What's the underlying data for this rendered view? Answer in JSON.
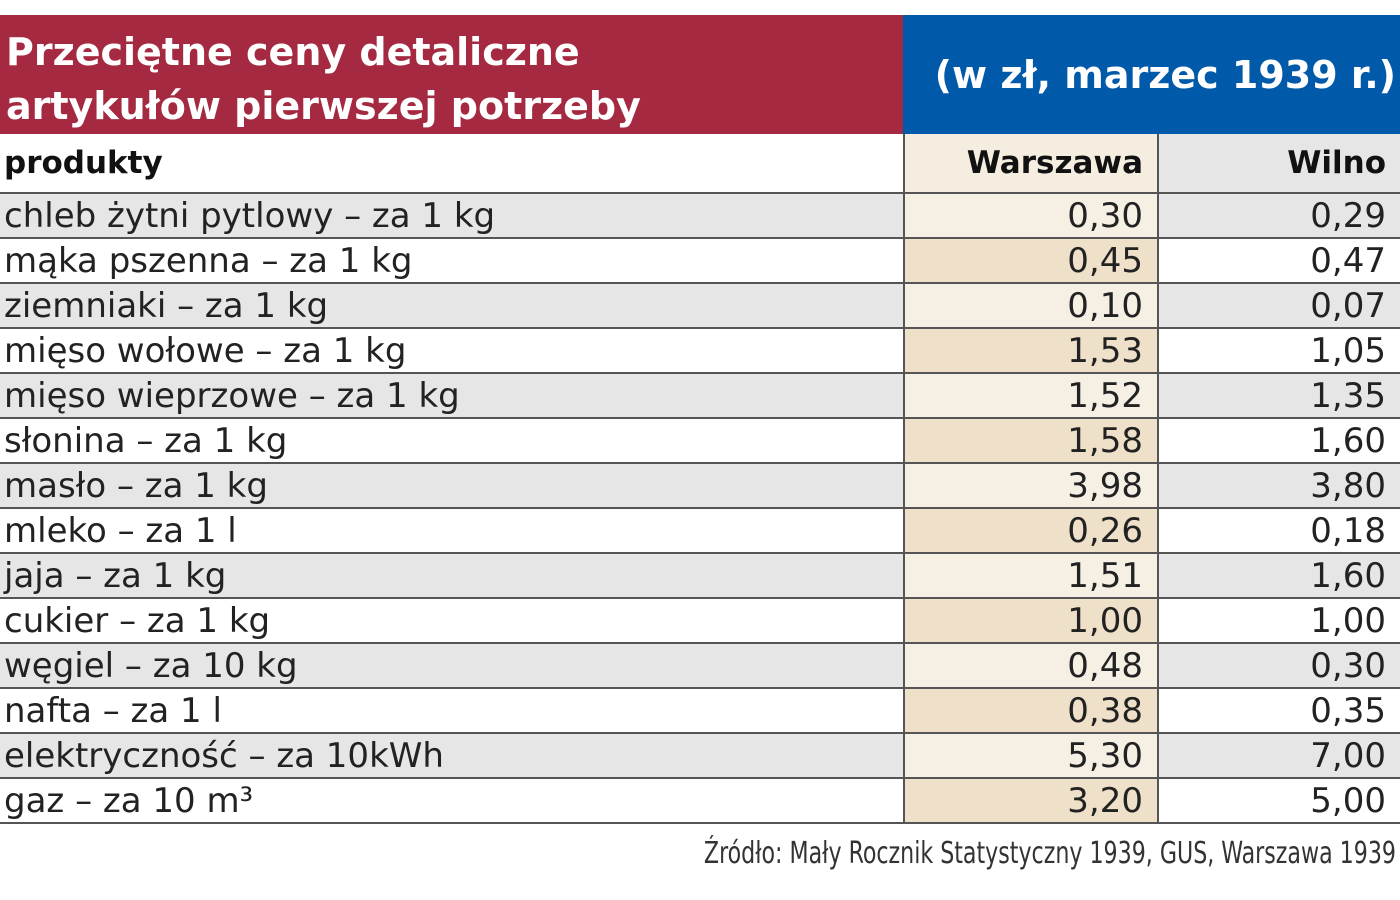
{
  "header": {
    "title_lines": [
      "Przeciętne ceny detaliczne",
      "artykułów pierwszej potrzeby"
    ],
    "unit_note": "(w zł, marzec 1939 r.)"
  },
  "table": {
    "columns": [
      "produkty",
      "Warszawa",
      "Wilno"
    ],
    "rows": [
      [
        "chleb żytni pytlowy – za 1 kg",
        "0,30",
        "0,29"
      ],
      [
        "mąka pszenna – za 1 kg",
        "0,45",
        "0,47"
      ],
      [
        "ziemniaki – za 1 kg",
        "0,10",
        "0,07"
      ],
      [
        "mięso wołowe – za 1 kg",
        "1,53",
        "1,05"
      ],
      [
        "mięso wieprzowe – za 1 kg",
        "1,52",
        "1,35"
      ],
      [
        "słonina – za 1 kg",
        "1,58",
        "1,60"
      ],
      [
        "masło – za 1 kg",
        "3,98",
        "3,80"
      ],
      [
        "mleko – za 1 l",
        "0,26",
        "0,18"
      ],
      [
        "jaja – za 1 kg",
        "1,51",
        "1,60"
      ],
      [
        "cukier – za 1 kg",
        "1,00",
        "1,00"
      ],
      [
        "węgiel – za 10 kg",
        "0,48",
        "0,30"
      ],
      [
        "nafta – za 1 l",
        "0,38",
        "0,35"
      ],
      [
        "elektryczność – za 10kWh",
        "5,30",
        "7,00"
      ],
      [
        "gaz – za 10 m³",
        "3,20",
        "5,00"
      ]
    ]
  },
  "source": "Źródło: Mały Rocznik Statystyczny 1939, GUS, Warszawa 1939"
}
